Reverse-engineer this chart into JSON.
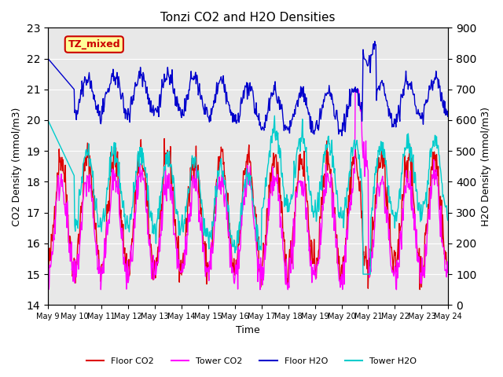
{
  "title": "Tonzi CO2 and H2O Densities",
  "xlabel": "Time",
  "ylabel_left": "CO2 Density (mmol/m3)",
  "ylabel_right": "H2O Density (mmol/m3)",
  "co2_ylim": [
    14.0,
    23.0
  ],
  "h2o_ylim": [
    0,
    900
  ],
  "xtick_labels": [
    "May 9",
    "May 10",
    "May 11",
    "May 12",
    "May 13",
    "May 14",
    "May 15",
    "May 16",
    "May 17",
    "May 18",
    "May 19",
    "May 20",
    "May 21",
    "May 22",
    "May 23",
    "May 24"
  ],
  "annotation_text": "TZ_mixed",
  "annotation_color": "#cc0000",
  "annotation_bg": "#ffff99",
  "bg_color": "#e8e8e8",
  "colors": {
    "floor_co2": "#dd0000",
    "tower_co2": "#ff00ff",
    "floor_h2o": "#0000cc",
    "tower_h2o": "#00cccc"
  },
  "legend_labels": [
    "Floor CO2",
    "Tower CO2",
    "Floor H2O",
    "Tower H2O"
  ]
}
